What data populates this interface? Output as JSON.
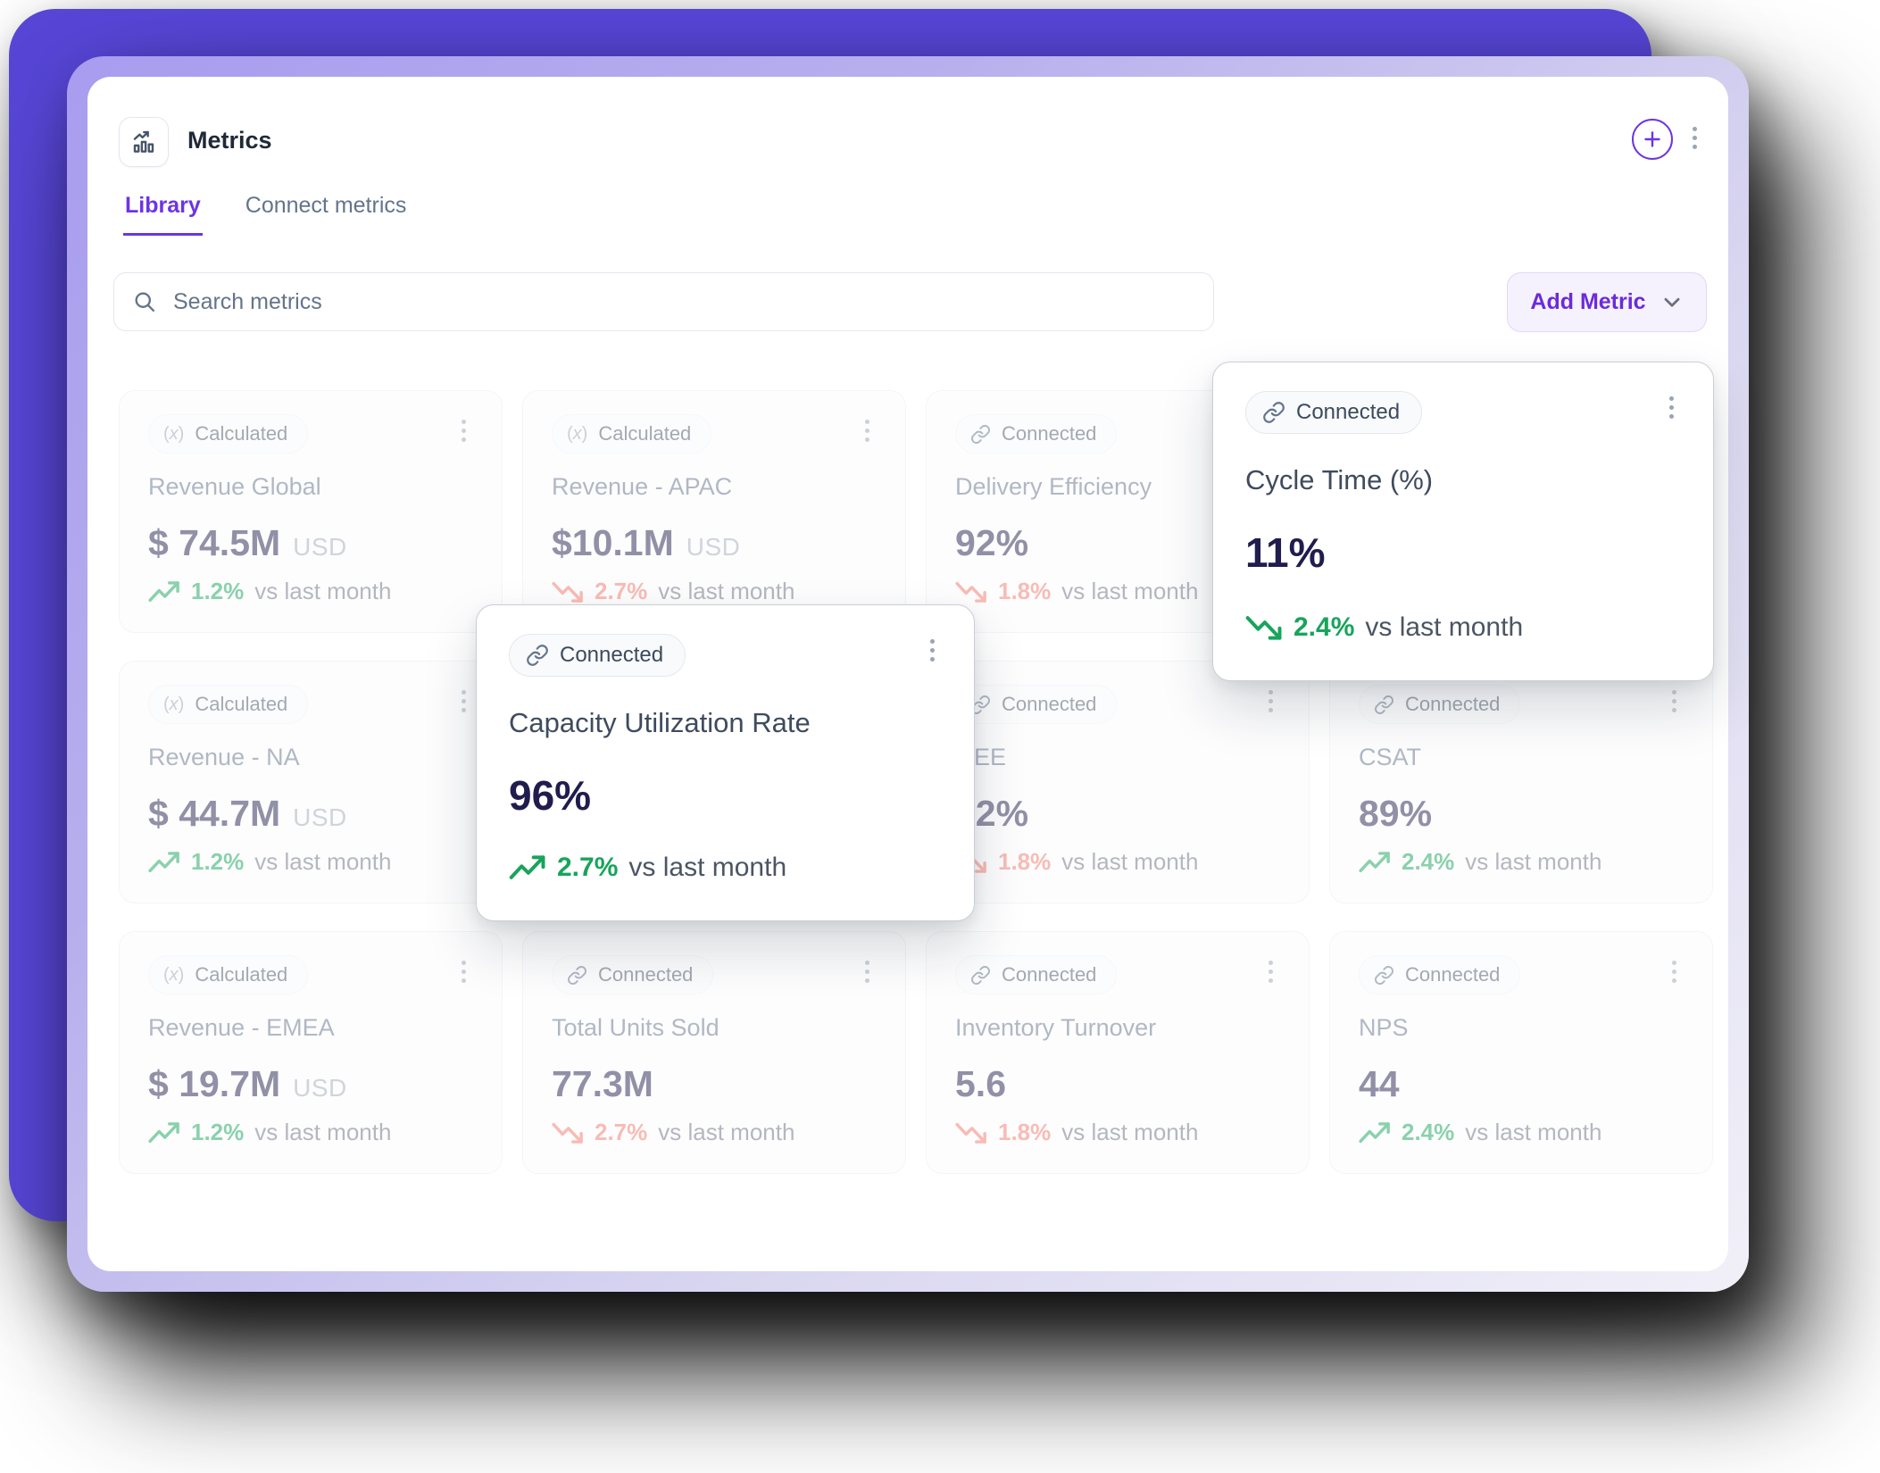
{
  "window": {
    "title": "Metrics"
  },
  "header": {
    "create_button": "plus-circle",
    "menu_button": "kebab-vertical",
    "app_icon": "bar-chart-trend"
  },
  "tabs": {
    "library": "Library",
    "connect": "Connect metrics",
    "active": "Library"
  },
  "search": {
    "placeholder": "Search metrics",
    "icon": "magnifier"
  },
  "toolbar": {
    "add_metric_label": "Add Metric",
    "add_metric_icon": "chevron-down"
  },
  "badge_labels": {
    "calculated": "Calculated",
    "connected": "Connected"
  },
  "badge_icons": {
    "calculated": "formula",
    "connected": "link"
  },
  "delta_suffix": "vs last month",
  "colors": {
    "accent": "#6C35E3",
    "panel_purple": "#5746D6",
    "green": "#18A45C",
    "red": "#F4796B",
    "value_dark": "#201D4E"
  },
  "cards": [
    {
      "type": "calculated",
      "name": "Revenue Global",
      "value": "$ 74.5M",
      "unit": "USD",
      "trend": "up",
      "trend_color": "green",
      "delta": "1.2%"
    },
    {
      "type": "calculated",
      "name": "Revenue - APAC",
      "value": "$10.1M",
      "unit": "USD",
      "trend": "down",
      "trend_color": "red",
      "delta": "2.7%"
    },
    {
      "type": "connected",
      "name": "Delivery Efficiency",
      "value": "92%",
      "unit": "",
      "trend": "down",
      "trend_color": "red",
      "delta": "1.8%"
    },
    null,
    {
      "type": "calculated",
      "name": "Revenue - NA",
      "value": "$ 44.7M",
      "unit": "USD",
      "trend": "up",
      "trend_color": "green",
      "delta": "1.2%"
    },
    null,
    {
      "type": "connected",
      "name": "OEE",
      "value": "92%",
      "unit": "",
      "trend": "down",
      "trend_color": "red",
      "delta": "1.8%"
    },
    {
      "type": "connected",
      "name": "CSAT",
      "value": "89%",
      "unit": "",
      "trend": "up",
      "trend_color": "green",
      "delta": "2.4%"
    },
    {
      "type": "calculated",
      "name": "Revenue - EMEA",
      "value": "$ 19.7M",
      "unit": "USD",
      "trend": "up",
      "trend_color": "green",
      "delta": "1.2%"
    },
    {
      "type": "connected",
      "name": "Total Units Sold",
      "value": "77.3M",
      "unit": "",
      "trend": "down",
      "trend_color": "red",
      "delta": "2.7%"
    },
    {
      "type": "connected",
      "name": "Inventory Turnover",
      "value": "5.6",
      "unit": "",
      "trend": "down",
      "trend_color": "red",
      "delta": "1.8%"
    },
    {
      "type": "connected",
      "name": "NPS",
      "value": "44",
      "unit": "",
      "trend": "up",
      "trend_color": "green",
      "delta": "2.4%"
    }
  ],
  "elevated_cards": [
    {
      "type": "connected",
      "name": "Capacity Utilization Rate",
      "value": "96%",
      "unit": "",
      "trend": "up",
      "trend_color": "green",
      "delta": "2.7%"
    },
    {
      "type": "connected",
      "name": "Cycle Time (%)",
      "value": "11%",
      "unit": "",
      "trend": "down",
      "trend_color": "green",
      "delta": "2.4%"
    }
  ]
}
